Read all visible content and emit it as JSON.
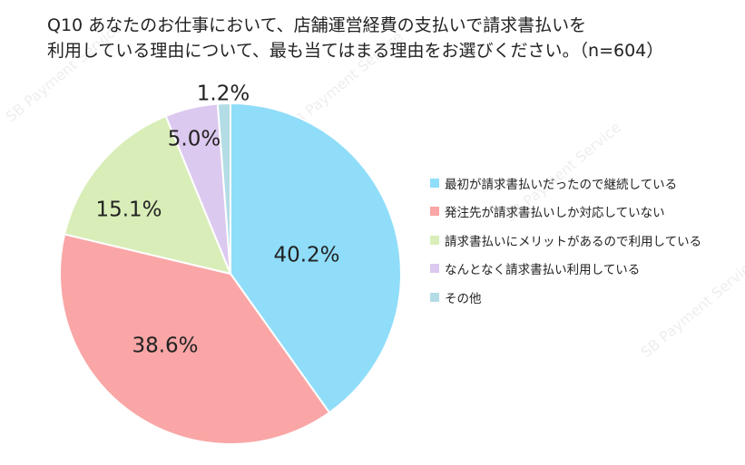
{
  "title_line1": "Q10 あなたのお仕事において、店舗運営経費の支払いで請求書払いを",
  "title_line2": "利用している理由について、最も当てはまる理由をお選びください。（n=604）",
  "watermark": "SB Payment Service",
  "chart_data": {
    "type": "pie",
    "title": "Q10 あなたのお仕事において、店舗運営経費の支払いで請求書払いを利用している理由について、最も当てはまる理由をお選びください。（n=604）",
    "legend_position": "right",
    "start": "12 o'clock",
    "direction": "clockwise",
    "slices": [
      {
        "label": "最初が請求書払いだったので継続している",
        "value": 40.2,
        "value_label": "40.2%",
        "color": "#8FDDF9"
      },
      {
        "label": "発注先が請求書払いしか対応していない",
        "value": 38.6,
        "value_label": "38.6%",
        "color": "#FAA6A6"
      },
      {
        "label": "請求書払いにメリットがあるので利用している",
        "value": 15.1,
        "value_label": "15.1%",
        "color": "#D9EDB8"
      },
      {
        "label": "なんとなく請求書払い利用している",
        "value": 5.0,
        "value_label": "5.0%",
        "color": "#DCC9EF"
      },
      {
        "label": "その他",
        "value": 1.2,
        "value_label": "1.2%",
        "color": "#B3DCE6"
      }
    ]
  }
}
